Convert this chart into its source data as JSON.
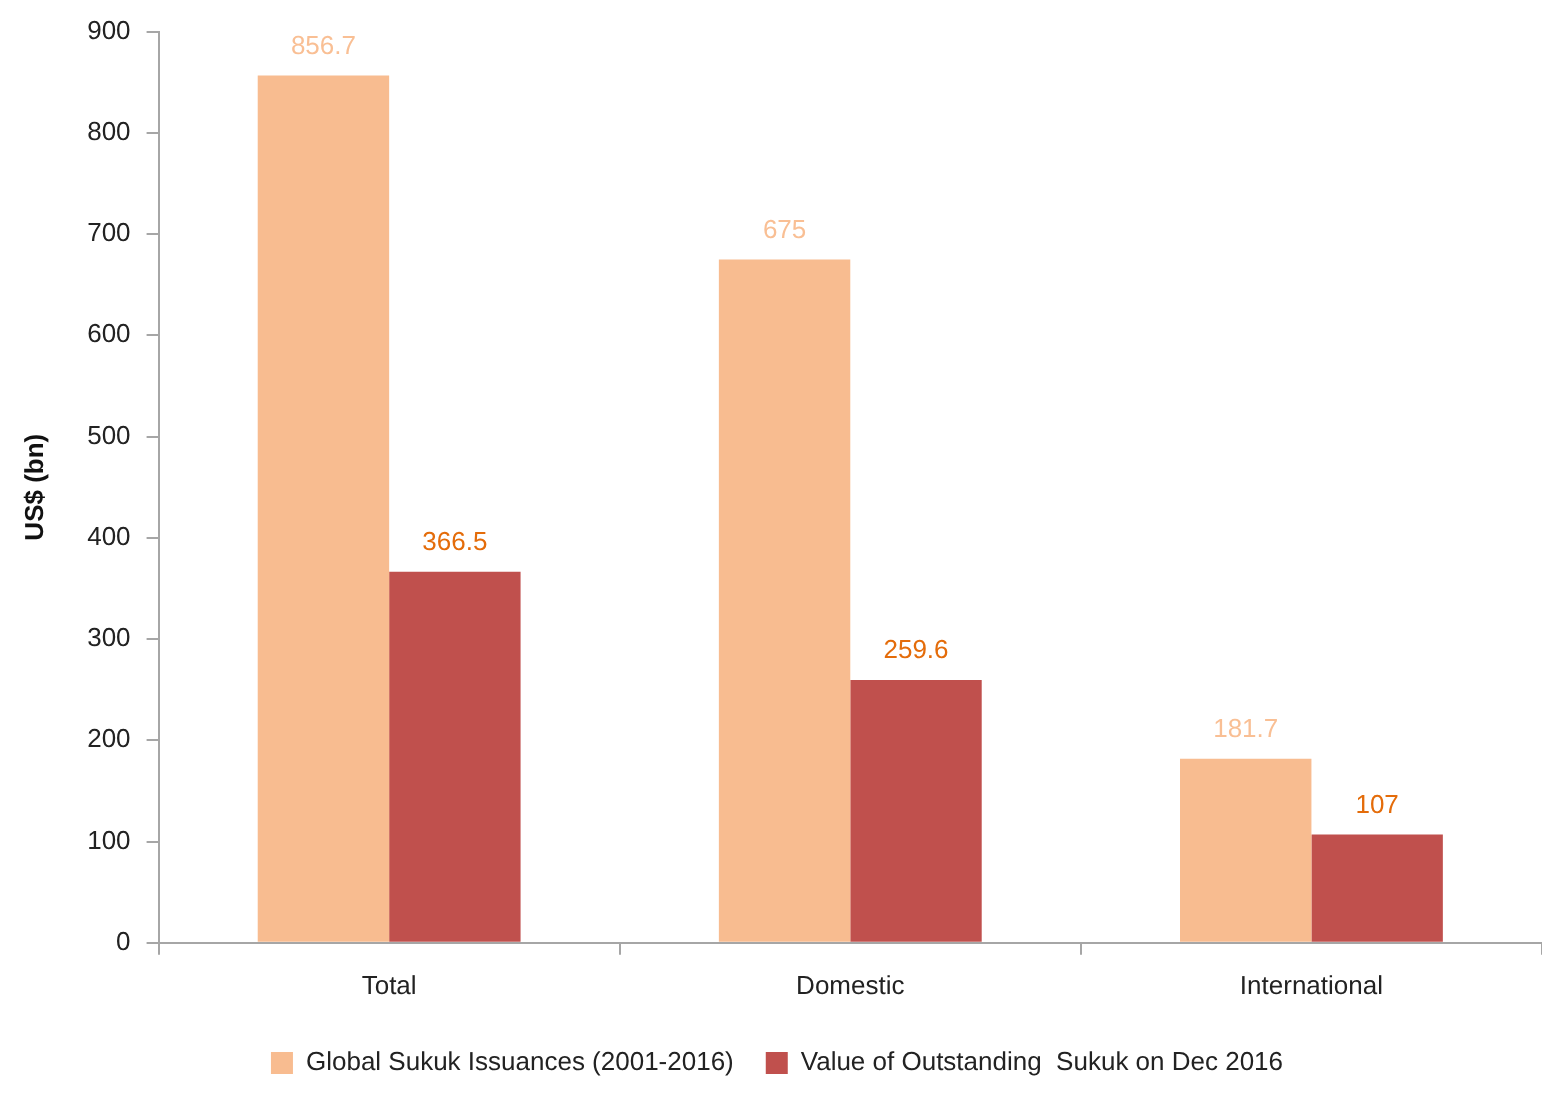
{
  "chart_data": {
    "type": "bar",
    "ylabel": "US$ (bn)",
    "categories": [
      "Total",
      "Domestic",
      "International"
    ],
    "series": [
      {
        "name": "Global Sukuk Issuances (2001-2016)",
        "color": "#f8bc90",
        "values": [
          856.7,
          675,
          181.7
        ]
      },
      {
        "name": "Value of Outstanding  Sukuk on Dec 2016",
        "color": "#c0504d",
        "values": [
          366.5,
          259.6,
          107
        ]
      }
    ],
    "ylim": [
      0,
      900
    ],
    "yticks": [
      0,
      100,
      200,
      300,
      400,
      500,
      600,
      700,
      800,
      900
    ],
    "grid": false,
    "legend": "bottom",
    "data_labels": true
  }
}
